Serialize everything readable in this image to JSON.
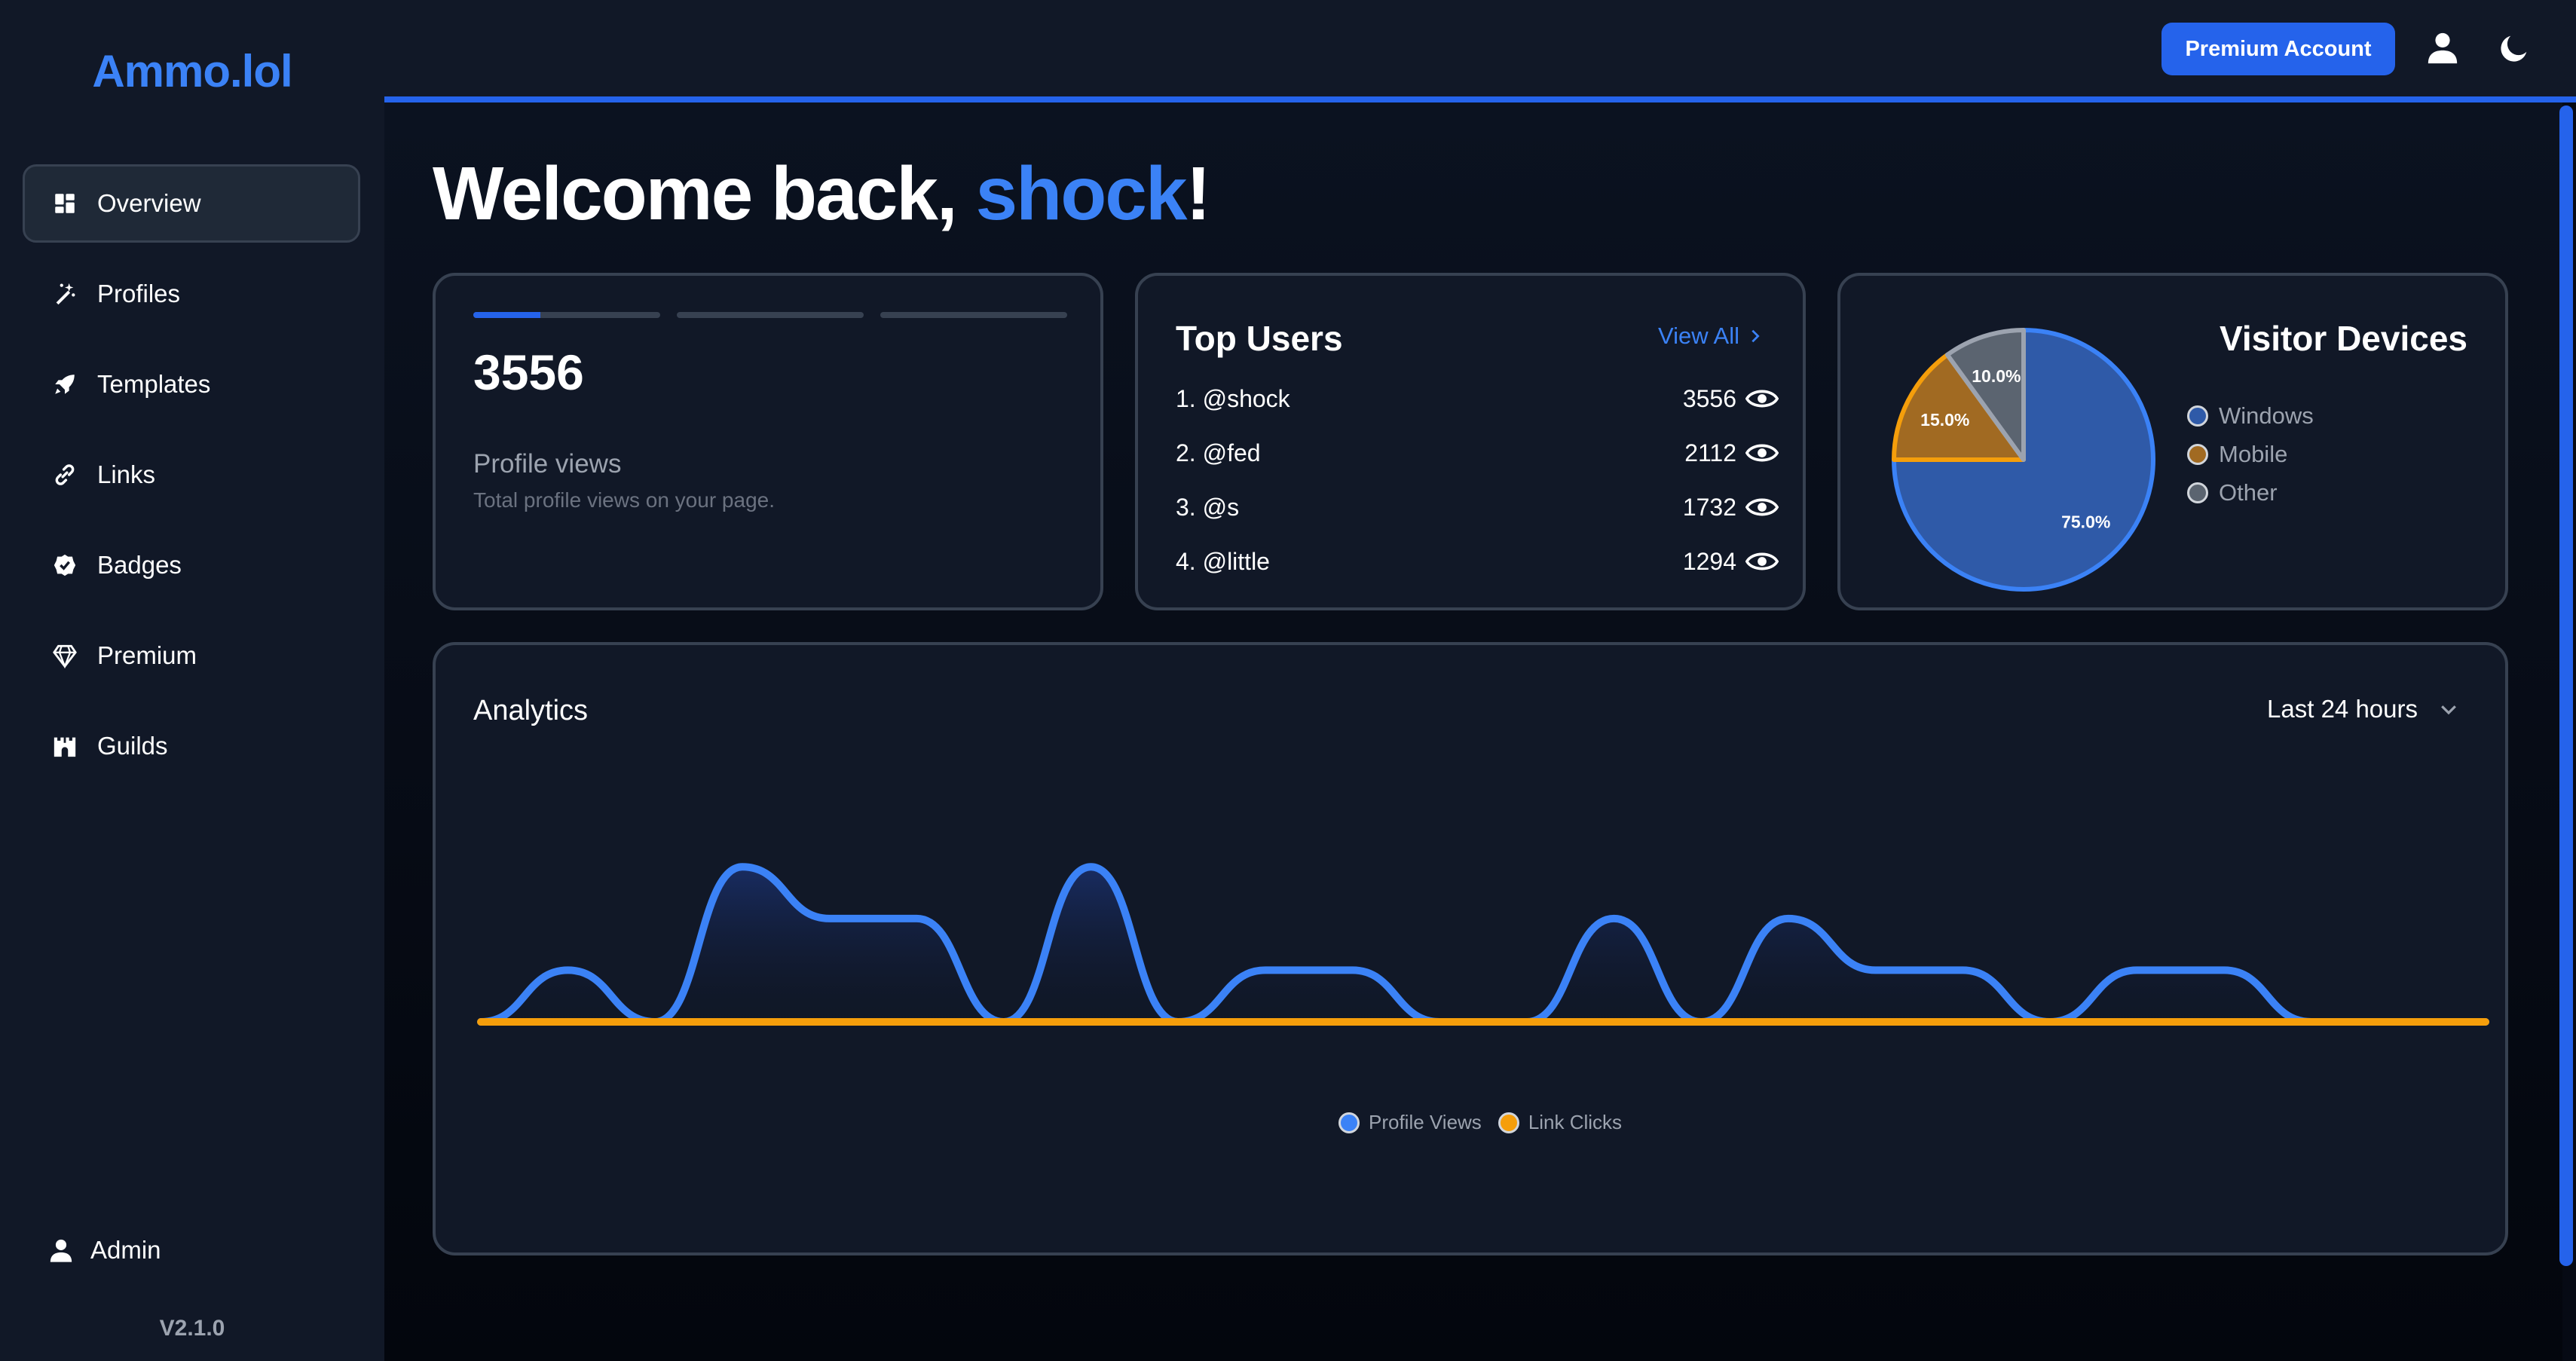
{
  "app": {
    "logo": "Ammo.lol",
    "version": "V2.1.0"
  },
  "sidebar": {
    "items": [
      {
        "label": "Overview",
        "icon": "dashboard-icon"
      },
      {
        "label": "Profiles",
        "icon": "magic-wand-icon"
      },
      {
        "label": "Templates",
        "icon": "rocket-icon"
      },
      {
        "label": "Links",
        "icon": "link-icon"
      },
      {
        "label": "Badges",
        "icon": "badge-check-icon"
      },
      {
        "label": "Premium",
        "icon": "gem-icon"
      },
      {
        "label": "Guilds",
        "icon": "castle-icon"
      }
    ],
    "active_index": 0,
    "user_label": "Admin"
  },
  "header": {
    "premium_button": "Premium Account",
    "icons": [
      "user-icon",
      "moon-icon"
    ]
  },
  "welcome": {
    "prefix": "Welcome back, ",
    "username": "shock",
    "suffix": "!"
  },
  "stats_card": {
    "value": "3556",
    "label": "Profile views",
    "description": "Total profile views on your page.",
    "progress_segments": [
      0.36,
      0,
      0
    ]
  },
  "top_users": {
    "title": "Top Users",
    "view_all": "View All",
    "rows": [
      {
        "rank_user": "1. @shock",
        "views": "3556"
      },
      {
        "rank_user": "2. @fed",
        "views": "2112"
      },
      {
        "rank_user": "3. @s",
        "views": "1732"
      },
      {
        "rank_user": "4. @little",
        "views": "1294"
      }
    ]
  },
  "visitor_devices": {
    "title": "Visitor Devices",
    "slices": [
      {
        "name": "Windows",
        "value": 75.0,
        "label": "75.0%",
        "color": "#2f5aa8",
        "stroke": "#3b82f6"
      },
      {
        "name": "Mobile",
        "value": 15.0,
        "label": "15.0%",
        "color": "#a16a22",
        "stroke": "#f59e0b"
      },
      {
        "name": "Other",
        "value": 10.0,
        "label": "10.0%",
        "color": "#5b6470",
        "stroke": "#9ca3af"
      }
    ]
  },
  "analytics": {
    "title": "Analytics",
    "range": "Last 24 hours",
    "legend": [
      {
        "name": "Profile Views",
        "color": "#3b82f6"
      },
      {
        "name": "Link Clicks",
        "color": "#f59e0b"
      }
    ]
  },
  "chart_data": {
    "type": "area",
    "x": [
      0,
      1,
      2,
      3,
      4,
      5,
      6,
      7,
      8,
      9,
      10,
      11,
      12,
      13,
      14,
      15,
      16,
      17,
      18,
      19,
      20,
      21,
      22,
      23
    ],
    "series": [
      {
        "name": "Profile Views",
        "values": [
          0,
          1,
          0,
          3,
          2,
          2,
          0,
          3,
          0,
          1,
          1,
          0,
          0,
          2,
          0,
          2,
          1,
          1,
          0,
          1,
          1,
          0,
          0,
          0
        ]
      },
      {
        "name": "Link Clicks",
        "values": [
          0,
          0,
          0,
          0,
          0,
          0,
          0,
          0,
          0,
          0,
          0,
          0,
          0,
          0,
          0,
          0,
          0,
          0,
          0,
          0,
          0,
          0,
          0,
          0
        ]
      }
    ],
    "ylim": [
      0,
      3.5
    ],
    "grid": false,
    "legend_position": "bottom"
  }
}
